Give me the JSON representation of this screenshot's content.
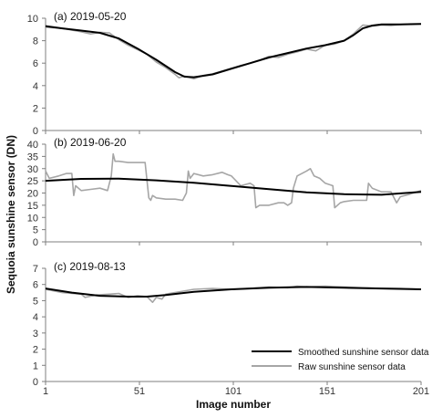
{
  "figure": {
    "ylabel": "Sequoia sunshine sensor (DN)",
    "xlabel": "Image number",
    "x_ticks": [
      "1",
      "51",
      "101",
      "151",
      "201"
    ],
    "legend": {
      "smoothed": "Smoothed sunshine sensor data",
      "raw": "Raw sunshine sensor data"
    },
    "colors": {
      "smoothed": "#000000",
      "raw": "#a6a6a6",
      "axis": "#7f7f7f"
    }
  },
  "chart_data": [
    {
      "type": "line",
      "title": "(a) 2019-05-20",
      "xlim": [
        1,
        201
      ],
      "ylim": [
        0,
        10
      ],
      "yticks": [
        "0",
        "2",
        "4",
        "6",
        "8",
        "10"
      ],
      "x_ticks": [
        1,
        51,
        101,
        151,
        201
      ],
      "series": [
        {
          "name": "Smoothed sunshine sensor data",
          "x": [
            1,
            10,
            20,
            30,
            40,
            50,
            60,
            70,
            75,
            80,
            90,
            100,
            110,
            120,
            130,
            140,
            150,
            160,
            165,
            170,
            175,
            180,
            190,
            201
          ],
          "y": [
            9.3,
            9.1,
            8.9,
            8.7,
            8.2,
            7.3,
            6.3,
            5.2,
            4.8,
            4.75,
            5.0,
            5.5,
            6.0,
            6.5,
            6.9,
            7.3,
            7.6,
            8.0,
            8.5,
            9.1,
            9.35,
            9.45,
            9.45,
            9.5
          ]
        },
        {
          "name": "Raw sunshine sensor data",
          "x": [
            1,
            10,
            20,
            25,
            30,
            35,
            40,
            45,
            50,
            55,
            60,
            65,
            70,
            72,
            75,
            80,
            85,
            90,
            95,
            100,
            105,
            110,
            115,
            120,
            125,
            130,
            135,
            140,
            145,
            150,
            155,
            160,
            165,
            170,
            175,
            180,
            185,
            190,
            195,
            201
          ],
          "y": [
            9.2,
            9.1,
            8.8,
            8.6,
            8.75,
            8.7,
            8.1,
            7.6,
            7.2,
            6.8,
            6.1,
            5.6,
            5.0,
            4.7,
            4.85,
            4.6,
            4.9,
            5.05,
            5.3,
            5.55,
            5.8,
            6.0,
            6.25,
            6.6,
            6.5,
            6.8,
            7.0,
            7.25,
            7.1,
            7.6,
            7.7,
            8.0,
            8.6,
            9.4,
            9.3,
            9.4,
            9.35,
            9.45,
            9.5,
            9.5
          ]
        }
      ]
    },
    {
      "type": "line",
      "title": "(b) 2019-06-20",
      "xlim": [
        1,
        201
      ],
      "ylim": [
        0,
        40
      ],
      "yticks": [
        "0",
        "5",
        "10",
        "15",
        "20",
        "25",
        "30",
        "35",
        "40"
      ],
      "x_ticks": [
        1,
        51,
        101,
        151,
        201
      ],
      "series": [
        {
          "name": "Smoothed sunshine sensor data",
          "x": [
            1,
            20,
            40,
            60,
            80,
            100,
            120,
            140,
            160,
            180,
            201
          ],
          "y": [
            25.0,
            25.8,
            25.9,
            25.2,
            24.2,
            22.9,
            21.6,
            20.3,
            19.5,
            19.3,
            20.5
          ]
        },
        {
          "name": "Raw sunshine sensor data",
          "x": [
            1,
            3,
            8,
            12,
            15,
            16,
            17,
            20,
            25,
            30,
            34,
            36,
            37,
            38,
            40,
            45,
            50,
            54,
            56,
            57,
            58,
            60,
            65,
            70,
            74,
            76,
            77,
            78,
            80,
            85,
            90,
            95,
            98,
            100,
            105,
            110,
            112,
            113,
            115,
            120,
            125,
            128,
            130,
            132,
            133,
            135,
            140,
            142,
            144,
            147,
            150,
            154,
            155,
            158,
            160,
            165,
            170,
            172,
            173,
            175,
            180,
            185,
            188,
            190,
            195,
            201
          ],
          "y": [
            29,
            26,
            27,
            28,
            28,
            19,
            23,
            21,
            21.5,
            22,
            21,
            27,
            36,
            33,
            33,
            32.5,
            32.5,
            32.5,
            18,
            17,
            19,
            18,
            17.5,
            17.5,
            17,
            20,
            29,
            26,
            28,
            27,
            27.5,
            28.5,
            27.5,
            27,
            23,
            24,
            23,
            14,
            15,
            15,
            16,
            16,
            15,
            16,
            22,
            27,
            29,
            30,
            27,
            26,
            24,
            23,
            14,
            16,
            16.5,
            17,
            17,
            17,
            24,
            22,
            20.5,
            20.5,
            16,
            18.5,
            19.5,
            21
          ]
        }
      ]
    },
    {
      "type": "line",
      "title": "(c) 2019-08-13",
      "xlim": [
        1,
        201
      ],
      "ylim": [
        0,
        7
      ],
      "yticks": [
        "0",
        "1",
        "2",
        "3",
        "4",
        "5",
        "6",
        "7"
      ],
      "x_ticks": [
        1,
        51,
        101,
        151,
        201
      ],
      "series": [
        {
          "name": "Smoothed sunshine sensor data",
          "x": [
            1,
            15,
            30,
            45,
            55,
            65,
            80,
            100,
            120,
            140,
            160,
            180,
            201
          ],
          "y": [
            5.75,
            5.5,
            5.3,
            5.25,
            5.25,
            5.35,
            5.55,
            5.7,
            5.8,
            5.85,
            5.8,
            5.75,
            5.7
          ]
        },
        {
          "name": "Raw sunshine sensor data",
          "x": [
            1,
            10,
            20,
            22,
            28,
            35,
            40,
            45,
            50,
            55,
            58,
            60,
            63,
            65,
            70,
            80,
            90,
            100,
            110,
            120,
            130,
            135,
            140,
            150,
            160,
            170,
            180,
            190,
            201
          ],
          "y": [
            5.7,
            5.5,
            5.4,
            5.2,
            5.35,
            5.4,
            5.45,
            5.2,
            5.3,
            5.25,
            4.9,
            5.2,
            5.1,
            5.4,
            5.5,
            5.7,
            5.75,
            5.7,
            5.75,
            5.85,
            5.8,
            5.9,
            5.85,
            5.9,
            5.85,
            5.8,
            5.75,
            5.75,
            5.7
          ]
        }
      ]
    }
  ]
}
